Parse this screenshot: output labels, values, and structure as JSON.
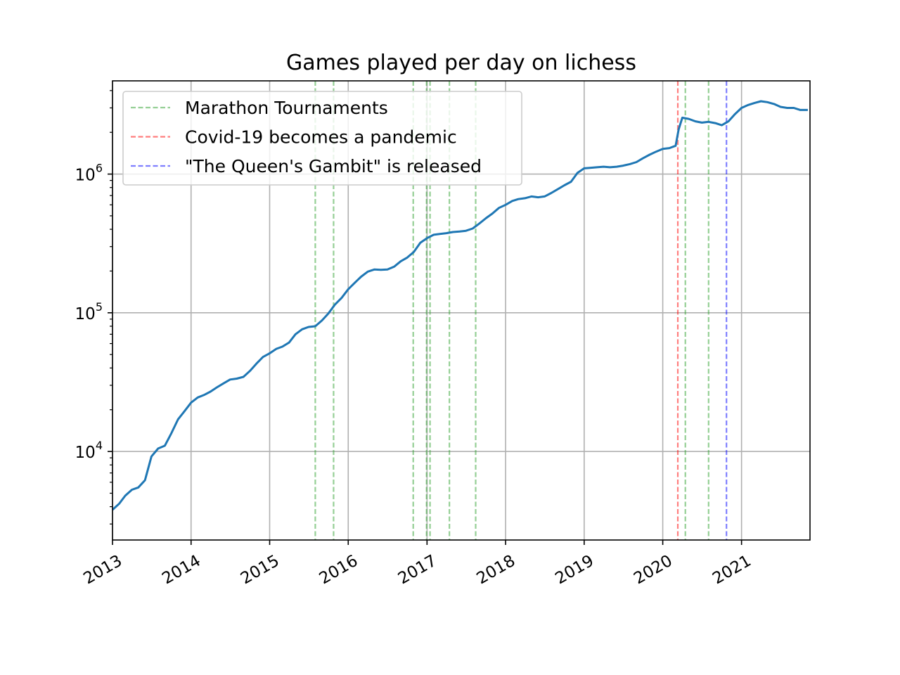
{
  "chart_data": {
    "type": "line",
    "title": "Games played per day on lichess",
    "xlabel": "",
    "ylabel": "",
    "y_scale": "log",
    "grid": true,
    "legend_position": "top-left",
    "xlim": [
      "2013-01-01",
      "2021-11-15"
    ],
    "ylim": [
      2300,
      4700000
    ],
    "x_ticks": [
      "2013",
      "2014",
      "2015",
      "2016",
      "2017",
      "2018",
      "2019",
      "2020",
      "2021"
    ],
    "y_ticks": [
      {
        "value": 10000,
        "base": "10",
        "exp": "4"
      },
      {
        "value": 100000,
        "base": "10",
        "exp": "5"
      },
      {
        "value": 1000000,
        "base": "10",
        "exp": "6"
      }
    ],
    "series": [
      {
        "color": "#1f77b4",
        "points": [
          [
            "2013-01-01",
            3800
          ],
          [
            "2013-02-01",
            4200
          ],
          [
            "2013-03-01",
            4800
          ],
          [
            "2013-04-01",
            5300
          ],
          [
            "2013-05-01",
            5500
          ],
          [
            "2013-06-01",
            6200
          ],
          [
            "2013-07-01",
            9200
          ],
          [
            "2013-08-01",
            10500
          ],
          [
            "2013-09-01",
            11000
          ],
          [
            "2013-10-01",
            13500
          ],
          [
            "2013-11-01",
            17000
          ],
          [
            "2013-12-01",
            19500
          ],
          [
            "2014-01-01",
            22500
          ],
          [
            "2014-02-01",
            24500
          ],
          [
            "2014-03-01",
            25500
          ],
          [
            "2014-04-01",
            27000
          ],
          [
            "2014-05-01",
            29000
          ],
          [
            "2014-06-01",
            31000
          ],
          [
            "2014-07-01",
            33000
          ],
          [
            "2014-08-01",
            33500
          ],
          [
            "2014-09-01",
            34500
          ],
          [
            "2014-10-01",
            38000
          ],
          [
            "2014-11-01",
            43000
          ],
          [
            "2014-12-01",
            48000
          ],
          [
            "2015-01-01",
            51000
          ],
          [
            "2015-02-01",
            55000
          ],
          [
            "2015-03-01",
            57000
          ],
          [
            "2015-04-01",
            61000
          ],
          [
            "2015-05-01",
            70000
          ],
          [
            "2015-06-01",
            76000
          ],
          [
            "2015-07-01",
            79000
          ],
          [
            "2015-08-01",
            80000
          ],
          [
            "2015-09-01",
            88000
          ],
          [
            "2015-10-01",
            99000
          ],
          [
            "2015-11-01",
            115000
          ],
          [
            "2015-12-01",
            128000
          ],
          [
            "2016-01-01",
            148000
          ],
          [
            "2016-02-01",
            165000
          ],
          [
            "2016-03-01",
            182000
          ],
          [
            "2016-04-01",
            198000
          ],
          [
            "2016-05-01",
            205000
          ],
          [
            "2016-06-01",
            204000
          ],
          [
            "2016-07-01",
            205000
          ],
          [
            "2016-08-01",
            215000
          ],
          [
            "2016-09-01",
            235000
          ],
          [
            "2016-10-01",
            250000
          ],
          [
            "2016-11-01",
            275000
          ],
          [
            "2016-12-01",
            320000
          ],
          [
            "2017-01-01",
            345000
          ],
          [
            "2017-02-01",
            365000
          ],
          [
            "2017-03-01",
            370000
          ],
          [
            "2017-04-01",
            375000
          ],
          [
            "2017-05-01",
            382000
          ],
          [
            "2017-06-01",
            385000
          ],
          [
            "2017-07-01",
            390000
          ],
          [
            "2017-08-01",
            405000
          ],
          [
            "2017-09-01",
            440000
          ],
          [
            "2017-10-01",
            480000
          ],
          [
            "2017-11-01",
            520000
          ],
          [
            "2017-12-01",
            570000
          ],
          [
            "2018-01-01",
            600000
          ],
          [
            "2018-02-01",
            640000
          ],
          [
            "2018-03-01",
            660000
          ],
          [
            "2018-04-01",
            670000
          ],
          [
            "2018-05-01",
            690000
          ],
          [
            "2018-06-01",
            680000
          ],
          [
            "2018-07-01",
            690000
          ],
          [
            "2018-08-01",
            730000
          ],
          [
            "2018-09-01",
            780000
          ],
          [
            "2018-10-01",
            830000
          ],
          [
            "2018-11-01",
            880000
          ],
          [
            "2018-12-01",
            1020000
          ],
          [
            "2019-01-01",
            1100000
          ],
          [
            "2019-02-01",
            1110000
          ],
          [
            "2019-03-01",
            1120000
          ],
          [
            "2019-04-01",
            1130000
          ],
          [
            "2019-05-01",
            1120000
          ],
          [
            "2019-06-01",
            1130000
          ],
          [
            "2019-07-01",
            1150000
          ],
          [
            "2019-08-01",
            1180000
          ],
          [
            "2019-09-01",
            1220000
          ],
          [
            "2019-10-01",
            1300000
          ],
          [
            "2019-11-01",
            1380000
          ],
          [
            "2019-12-01",
            1450000
          ],
          [
            "2020-01-01",
            1520000
          ],
          [
            "2020-02-01",
            1540000
          ],
          [
            "2020-03-01",
            1600000
          ],
          [
            "2020-03-15",
            2100000
          ],
          [
            "2020-04-01",
            2550000
          ],
          [
            "2020-05-01",
            2500000
          ],
          [
            "2020-06-01",
            2400000
          ],
          [
            "2020-07-01",
            2350000
          ],
          [
            "2020-08-01",
            2380000
          ],
          [
            "2020-09-01",
            2330000
          ],
          [
            "2020-10-01",
            2250000
          ],
          [
            "2020-11-01",
            2400000
          ],
          [
            "2020-12-01",
            2700000
          ],
          [
            "2021-01-01",
            3000000
          ],
          [
            "2021-02-01",
            3150000
          ],
          [
            "2021-03-01",
            3250000
          ],
          [
            "2021-04-01",
            3350000
          ],
          [
            "2021-05-01",
            3300000
          ],
          [
            "2021-06-01",
            3200000
          ],
          [
            "2021-07-01",
            3050000
          ],
          [
            "2021-08-01",
            3000000
          ],
          [
            "2021-09-01",
            3000000
          ],
          [
            "2021-10-01",
            2900000
          ],
          [
            "2021-11-05",
            2900000
          ]
        ]
      }
    ],
    "vertical_lines": [
      {
        "group": "marathon",
        "date": "2015-08-01"
      },
      {
        "group": "marathon",
        "date": "2015-10-25"
      },
      {
        "group": "marathon",
        "date": "2016-10-29"
      },
      {
        "group": "marathon",
        "date": "2016-12-30"
      },
      {
        "group": "marathon",
        "date": "2017-01-15"
      },
      {
        "group": "marathon",
        "date": "2017-04-15"
      },
      {
        "group": "marathon",
        "date": "2017-08-15"
      },
      {
        "group": "covid",
        "date": "2020-03-11"
      },
      {
        "group": "marathon",
        "date": "2020-04-15"
      },
      {
        "group": "marathon",
        "date": "2020-08-01"
      },
      {
        "group": "queens_gambit",
        "date": "2020-10-23"
      }
    ],
    "legend": [
      {
        "key": "marathon",
        "label": "Marathon Tournaments",
        "color": "#2ca02c"
      },
      {
        "key": "covid",
        "label": "Covid-19 becomes a pandemic",
        "color": "#ff0000"
      },
      {
        "key": "queens_gambit",
        "label": "\"The Queen's Gambit\" is released",
        "color": "#0000ff"
      }
    ]
  }
}
